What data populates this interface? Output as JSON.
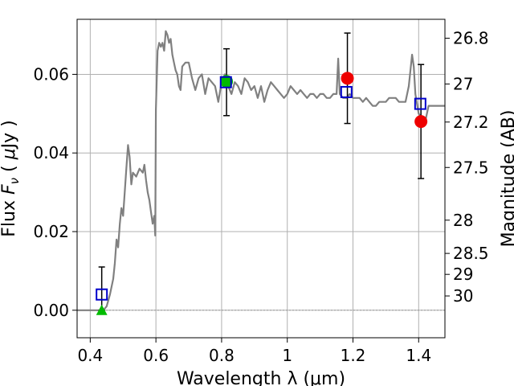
{
  "chart_data": {
    "type": "line",
    "xlabel": "Wavelength  λ (μm)",
    "ylabel": "Flux  F_ν  ( μJy )",
    "ylabel_right": "Magnitude (AB)",
    "xlim": [
      0.36,
      1.48
    ],
    "ylim": [
      -0.007,
      0.074
    ],
    "grid": true,
    "x_ticks": [
      0.4,
      0.6,
      0.8,
      1.0,
      1.2,
      1.4
    ],
    "x_tick_labels": [
      "0.4",
      "0.6",
      "0.8",
      "1",
      "1.2",
      "1.4"
    ],
    "y_ticks": [
      0.0,
      0.02,
      0.04,
      0.06
    ],
    "y_tick_labels": [
      "0.00",
      "0.02",
      "0.04",
      "0.06"
    ],
    "right_ticks": [
      {
        "label": "26.8",
        "mag": 26.8
      },
      {
        "label": "27",
        "mag": 27.0
      },
      {
        "label": "27.2",
        "mag": 27.2
      },
      {
        "label": "27.5",
        "mag": 27.5
      },
      {
        "label": "28",
        "mag": 28.0
      },
      {
        "label": "28.5",
        "mag": 28.5
      },
      {
        "label": "29",
        "mag": 29.0
      },
      {
        "label": "30",
        "mag": 30.0
      }
    ],
    "model_spectrum": {
      "color": "#808080",
      "x": [
        0.36,
        0.43,
        0.44,
        0.45,
        0.46,
        0.47,
        0.475,
        0.48,
        0.485,
        0.49,
        0.495,
        0.5,
        0.505,
        0.51,
        0.515,
        0.52,
        0.525,
        0.53,
        0.54,
        0.55,
        0.56,
        0.565,
        0.57,
        0.575,
        0.58,
        0.585,
        0.59,
        0.595,
        0.598,
        0.6,
        0.605,
        0.61,
        0.615,
        0.62,
        0.625,
        0.63,
        0.635,
        0.64,
        0.645,
        0.65,
        0.655,
        0.66,
        0.665,
        0.67,
        0.675,
        0.68,
        0.69,
        0.7,
        0.71,
        0.72,
        0.73,
        0.74,
        0.75,
        0.76,
        0.77,
        0.78,
        0.79,
        0.8,
        0.81,
        0.82,
        0.83,
        0.84,
        0.85,
        0.86,
        0.87,
        0.88,
        0.89,
        0.9,
        0.91,
        0.92,
        0.93,
        0.94,
        0.95,
        0.96,
        0.97,
        0.98,
        0.99,
        1.0,
        1.01,
        1.02,
        1.03,
        1.04,
        1.05,
        1.06,
        1.07,
        1.08,
        1.09,
        1.1,
        1.11,
        1.12,
        1.13,
        1.14,
        1.15,
        1.155,
        1.16,
        1.17,
        1.18,
        1.19,
        1.2,
        1.21,
        1.22,
        1.23,
        1.24,
        1.25,
        1.26,
        1.27,
        1.28,
        1.29,
        1.3,
        1.31,
        1.32,
        1.33,
        1.34,
        1.35,
        1.36,
        1.37,
        1.38,
        1.385,
        1.39,
        1.4,
        1.41,
        1.42,
        1.43,
        1.44,
        1.45,
        1.46,
        1.47,
        1.48
      ],
      "y": [
        0.0,
        0.0,
        0.0,
        0.001,
        0.004,
        0.008,
        0.012,
        0.018,
        0.016,
        0.022,
        0.026,
        0.024,
        0.03,
        0.036,
        0.042,
        0.039,
        0.032,
        0.035,
        0.034,
        0.036,
        0.035,
        0.037,
        0.033,
        0.03,
        0.028,
        0.025,
        0.022,
        0.024,
        0.019,
        0.051,
        0.066,
        0.068,
        0.067,
        0.068,
        0.066,
        0.071,
        0.07,
        0.068,
        0.069,
        0.065,
        0.063,
        0.061,
        0.06,
        0.057,
        0.056,
        0.062,
        0.063,
        0.063,
        0.059,
        0.056,
        0.059,
        0.06,
        0.055,
        0.059,
        0.058,
        0.057,
        0.053,
        0.058,
        0.06,
        0.057,
        0.055,
        0.058,
        0.057,
        0.055,
        0.059,
        0.058,
        0.056,
        0.057,
        0.054,
        0.057,
        0.053,
        0.056,
        0.058,
        0.057,
        0.056,
        0.055,
        0.054,
        0.055,
        0.057,
        0.056,
        0.055,
        0.056,
        0.055,
        0.054,
        0.055,
        0.055,
        0.054,
        0.055,
        0.055,
        0.054,
        0.054,
        0.055,
        0.055,
        0.064,
        0.055,
        0.054,
        0.054,
        0.055,
        0.054,
        0.054,
        0.054,
        0.053,
        0.054,
        0.053,
        0.052,
        0.052,
        0.053,
        0.053,
        0.053,
        0.054,
        0.054,
        0.054,
        0.053,
        0.053,
        0.053,
        0.057,
        0.065,
        0.062,
        0.055,
        0.05,
        0.049,
        0.048,
        0.052,
        0.052,
        0.052,
        0.052,
        0.052,
        0.052
      ]
    },
    "model_photometry": {
      "color": "#0000cc",
      "marker": "open-square",
      "points": [
        {
          "x": 0.435,
          "y": 0.004
        },
        {
          "x": 0.813,
          "y": 0.058
        },
        {
          "x": 1.18,
          "y": 0.0555
        },
        {
          "x": 1.405,
          "y": 0.0525
        }
      ]
    },
    "observed_points": {
      "color": "#ee0000",
      "marker": "filled-circle",
      "points": [
        {
          "x": 1.183,
          "y": 0.059
        },
        {
          "x": 1.407,
          "y": 0.048
        }
      ]
    },
    "observed_points_green": {
      "color": "#00bb00",
      "marker": "filled-circle",
      "points": [
        {
          "x": 0.815,
          "y": 0.0582
        }
      ]
    },
    "upper_limit": {
      "color": "#00bb00",
      "marker": "triangle",
      "x": 0.435,
      "y": 0.0
    },
    "error_bars": [
      {
        "x": 0.435,
        "low": 0.0,
        "high": 0.011
      },
      {
        "x": 0.815,
        "low": 0.0495,
        "high": 0.0665
      },
      {
        "x": 1.183,
        "low": 0.0475,
        "high": 0.0705
      },
      {
        "x": 1.407,
        "low": 0.0335,
        "high": 0.0625
      }
    ]
  }
}
